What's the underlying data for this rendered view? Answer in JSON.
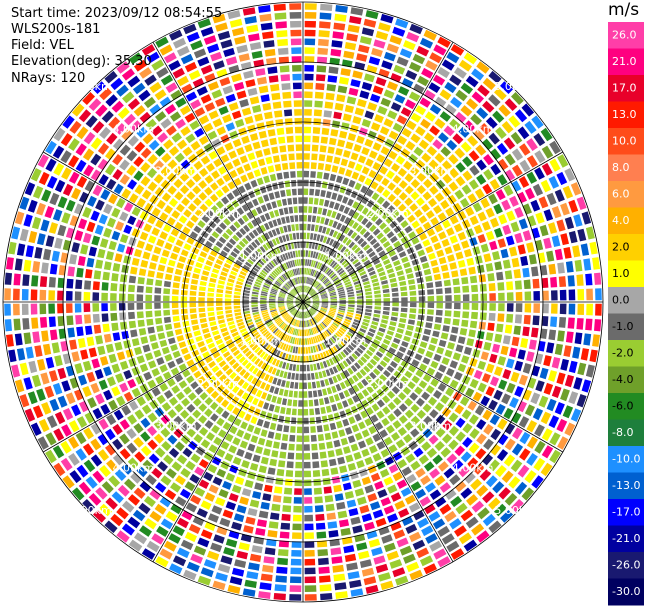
{
  "header": {
    "start_time": "Start time: 2023/09/12 08:54:55",
    "instrument": "WLS200s-181",
    "field": "Field: VEL",
    "elevation": "Elevation(deg): 35.30",
    "nrays": "NRays: 120"
  },
  "colorbar": {
    "unit": "m/s",
    "ticks": [
      "26.0",
      "21.0",
      "17.0",
      "13.0",
      "10.0",
      "8.0",
      "6.0",
      "4.0",
      "2.0",
      "1.0",
      "0.0",
      "-1.0",
      "-2.0",
      "-4.0",
      "-6.0",
      "-8.0",
      "-10.0",
      "-13.0",
      "-17.0",
      "-21.0",
      "-26.0",
      "-30.0"
    ],
    "colors": [
      "#ff3ea8",
      "#ff0080",
      "#e8002a",
      "#ff1a00",
      "#ff4c1a",
      "#ff7f50",
      "#ff9a40",
      "#ffb000",
      "#ffd000",
      "#ffff00",
      "#a7a7a7",
      "#6b6b6b",
      "#9acd32",
      "#6fa02a",
      "#228b22",
      "#1e7f3c",
      "#1e90ff",
      "#0060d0",
      "#0000ff",
      "#0000a0",
      "#191970",
      "#000060"
    ]
  },
  "chart_data": {
    "type": "ppi",
    "field": "VEL",
    "units": "m/s",
    "nrays": 120,
    "vmin": -30.0,
    "vmax": 26.0,
    "range_rings_km": [
      1.0,
      2.0,
      3.0,
      4.0,
      5.0
    ],
    "range_labels": [
      "1.00km",
      "2.00km",
      "3.00km",
      "4.00km",
      "5.00km"
    ],
    "azimuth_lines_deg": [
      0,
      30,
      60,
      90,
      120,
      150,
      180,
      210,
      240,
      270,
      300,
      330
    ],
    "gates_per_ray": 34,
    "max_range_km": 5.0
  }
}
